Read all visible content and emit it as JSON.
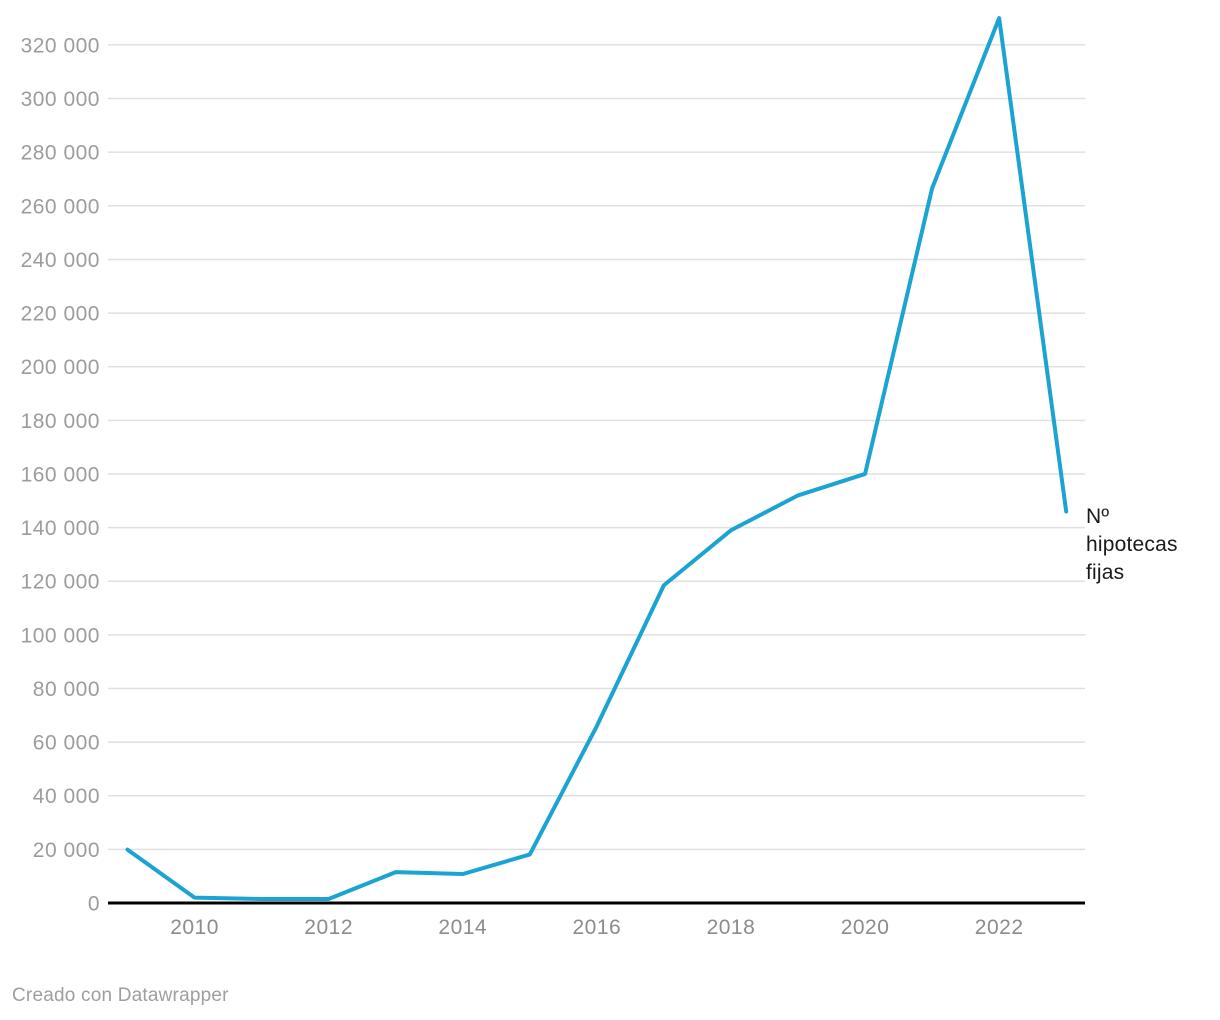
{
  "chart_data": {
    "type": "line",
    "title": "",
    "xlabel": "",
    "ylabel": "",
    "x": [
      2009,
      2010,
      2011,
      2012,
      2013,
      2014,
      2015,
      2016,
      2017,
      2018,
      2019,
      2020,
      2021,
      2022,
      2023
    ],
    "values": [
      19900,
      2000,
      1500,
      1500,
      11500,
      10800,
      18100,
      66000,
      118500,
      139000,
      152000,
      160000,
      266500,
      330000,
      146000
    ],
    "series_label": "Nº hipotecas fijas",
    "ylim": [
      0,
      330000
    ],
    "yticks": [
      0,
      20000,
      40000,
      60000,
      80000,
      100000,
      120000,
      140000,
      160000,
      180000,
      200000,
      220000,
      240000,
      260000,
      280000,
      300000,
      320000
    ],
    "ytick_labels": [
      "0",
      "20 000",
      "40 000",
      "60 000",
      "80 000",
      "100 000",
      "120 000",
      "140 000",
      "160 000",
      "180 000",
      "200 000",
      "220 000",
      "240 000",
      "260 000",
      "280 000",
      "300 000",
      "320 000"
    ],
    "xticks": [
      2010,
      2012,
      2014,
      2016,
      2018,
      2020,
      2022
    ],
    "xtick_labels": [
      "2010",
      "2012",
      "2014",
      "2016",
      "2018",
      "2020",
      "2022"
    ],
    "grid": "horizontal",
    "legend_position": "right-of-line-end",
    "colors": {
      "line": "#1BA3D2",
      "grid": "#e0e0e0",
      "zero_axis": "#000000",
      "y_tick_text": "#9c9c9c",
      "x_tick_text": "#8c8c8c",
      "annotation_text": "#1a1a1a",
      "footer_text": "#9e9e9e",
      "background": "#ffffff"
    }
  },
  "footer": {
    "attribution": "Creado con Datawrapper"
  }
}
